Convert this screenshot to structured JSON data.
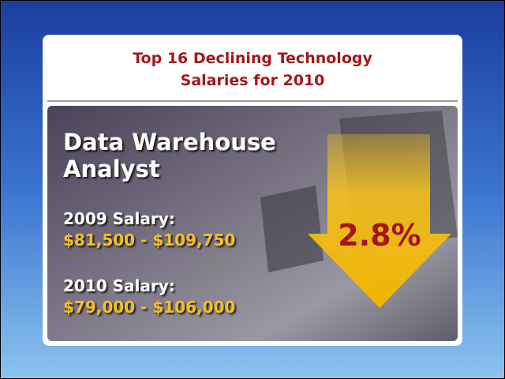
{
  "title_lines": [
    "Top 16 Declining Technology",
    "Salaries for 2010"
  ],
  "job_title_lines": [
    "Data Warehouse",
    "Analyst"
  ],
  "salaries": [
    {
      "label": "2009 Salary:",
      "range": "$81,500 - $109,750"
    },
    {
      "label": "2010 Salary:",
      "range": "$79,000 - $106,000"
    }
  ],
  "decline": "2.8%"
}
